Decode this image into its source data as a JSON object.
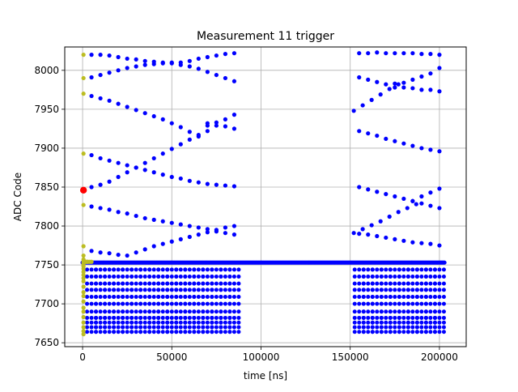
{
  "chart_data": {
    "type": "scatter",
    "title": "Measurement 11 trigger",
    "xlabel": "time [ns]",
    "ylabel": "ADC Code",
    "xlim": [
      -10000,
      215000
    ],
    "ylim": [
      7645,
      8030
    ],
    "xticks": [
      0,
      50000,
      100000,
      150000,
      200000
    ],
    "xtick_labels": [
      "0",
      "50000",
      "100000",
      "150000",
      "200000"
    ],
    "yticks": [
      7650,
      7700,
      7750,
      7800,
      7850,
      7900,
      7950,
      8000
    ],
    "ytick_labels": [
      "7650",
      "7700",
      "7750",
      "7800",
      "7850",
      "7900",
      "7950",
      "8000"
    ],
    "grid": true,
    "colors": {
      "main": "#0000ff",
      "pre_trigger": "#bcbd22",
      "trigger": "#ff0000",
      "grid": "#b0b0b0"
    },
    "baseline": {
      "y": 7753,
      "x_start": 0,
      "x_end": 203000
    },
    "series": [
      {
        "color_key": "pre_trigger",
        "points": [
          [
            500,
            8020
          ],
          [
            500,
            7990
          ],
          [
            500,
            7970
          ],
          [
            500,
            7893
          ],
          [
            500,
            7827
          ],
          [
            500,
            7774
          ],
          [
            500,
            7762
          ],
          [
            500,
            7757
          ],
          [
            500,
            7754
          ],
          [
            500,
            7752
          ],
          [
            500,
            7750
          ],
          [
            500,
            7748
          ],
          [
            500,
            7745
          ],
          [
            500,
            7741
          ],
          [
            500,
            7737
          ],
          [
            500,
            7733
          ],
          [
            500,
            7729
          ],
          [
            500,
            7722
          ],
          [
            500,
            7715
          ],
          [
            500,
            7710
          ],
          [
            500,
            7703
          ],
          [
            500,
            7695
          ],
          [
            500,
            7690
          ],
          [
            500,
            7683
          ],
          [
            500,
            7676
          ],
          [
            500,
            7670
          ],
          [
            500,
            7665
          ],
          [
            500,
            7661
          ],
          [
            1000,
            7754
          ],
          [
            1500,
            7754
          ],
          [
            2000,
            7754
          ],
          [
            2500,
            7754
          ],
          [
            3000,
            7754
          ],
          [
            4000,
            7754
          ],
          [
            5000,
            7754
          ]
        ]
      },
      {
        "color_key": "trigger",
        "points": [
          [
            500,
            7846
          ]
        ]
      },
      {
        "color_key": "main",
        "points": [
          [
            5000,
            8020
          ],
          [
            10000,
            8020
          ],
          [
            15000,
            8019
          ],
          [
            20000,
            8017
          ],
          [
            25000,
            8015
          ],
          [
            30000,
            8014
          ],
          [
            35000,
            8012
          ],
          [
            40000,
            8011
          ],
          [
            45000,
            8010
          ],
          [
            50000,
            8010
          ],
          [
            55000,
            8010
          ],
          [
            60000,
            8012
          ],
          [
            65000,
            8015
          ],
          [
            70000,
            8017
          ],
          [
            75000,
            8019
          ],
          [
            80000,
            8021
          ],
          [
            85000,
            8022
          ],
          [
            5000,
            7991
          ],
          [
            10000,
            7994
          ],
          [
            15000,
            7997
          ],
          [
            20000,
            8000
          ],
          [
            25000,
            8003
          ],
          [
            30000,
            8005
          ],
          [
            35000,
            8007
          ],
          [
            40000,
            8008
          ],
          [
            45000,
            8009
          ],
          [
            50000,
            8009
          ],
          [
            55000,
            8007
          ],
          [
            60000,
            8005
          ],
          [
            65000,
            8002
          ],
          [
            70000,
            7998
          ],
          [
            75000,
            7994
          ],
          [
            80000,
            7990
          ],
          [
            85000,
            7986
          ],
          [
            5000,
            7967
          ],
          [
            10000,
            7964
          ],
          [
            15000,
            7961
          ],
          [
            20000,
            7957
          ],
          [
            25000,
            7953
          ],
          [
            30000,
            7949
          ],
          [
            35000,
            7945
          ],
          [
            40000,
            7941
          ],
          [
            45000,
            7937
          ],
          [
            50000,
            7932
          ],
          [
            55000,
            7927
          ],
          [
            60000,
            7921
          ],
          [
            65000,
            7915
          ],
          [
            70000,
            7929
          ],
          [
            75000,
            7933
          ],
          [
            80000,
            7937
          ],
          [
            85000,
            7943
          ],
          [
            70000,
            7932
          ],
          [
            75000,
            7929
          ],
          [
            80000,
            7928
          ],
          [
            85000,
            7925
          ],
          [
            5000,
            7891
          ],
          [
            10000,
            7887
          ],
          [
            15000,
            7884
          ],
          [
            20000,
            7881
          ],
          [
            25000,
            7878
          ],
          [
            30000,
            7875
          ],
          [
            35000,
            7872
          ],
          [
            40000,
            7869
          ],
          [
            45000,
            7866
          ],
          [
            50000,
            7863
          ],
          [
            55000,
            7861
          ],
          [
            60000,
            7858
          ],
          [
            65000,
            7856
          ],
          [
            70000,
            7854
          ],
          [
            75000,
            7853
          ],
          [
            80000,
            7852
          ],
          [
            85000,
            7851
          ],
          [
            5000,
            7850
          ],
          [
            10000,
            7853
          ],
          [
            15000,
            7857
          ],
          [
            20000,
            7863
          ],
          [
            25000,
            7869
          ],
          [
            30000,
            7875
          ],
          [
            35000,
            7881
          ],
          [
            40000,
            7887
          ],
          [
            45000,
            7893
          ],
          [
            50000,
            7899
          ],
          [
            55000,
            7905
          ],
          [
            60000,
            7911
          ],
          [
            65000,
            7917
          ],
          [
            70000,
            7922
          ],
          [
            5000,
            7825
          ],
          [
            10000,
            7823
          ],
          [
            15000,
            7821
          ],
          [
            20000,
            7818
          ],
          [
            25000,
            7816
          ],
          [
            30000,
            7813
          ],
          [
            35000,
            7810
          ],
          [
            40000,
            7808
          ],
          [
            45000,
            7806
          ],
          [
            50000,
            7804
          ],
          [
            55000,
            7802
          ],
          [
            60000,
            7800
          ],
          [
            65000,
            7798
          ],
          [
            70000,
            7796
          ],
          [
            75000,
            7793
          ],
          [
            80000,
            7791
          ],
          [
            85000,
            7789
          ],
          [
            5000,
            7768
          ],
          [
            10000,
            7766
          ],
          [
            15000,
            7765
          ],
          [
            20000,
            7763
          ],
          [
            25000,
            7762
          ],
          [
            30000,
            7766
          ],
          [
            35000,
            7770
          ],
          [
            40000,
            7774
          ],
          [
            45000,
            7777
          ],
          [
            50000,
            7780
          ],
          [
            55000,
            7783
          ],
          [
            60000,
            7786
          ],
          [
            65000,
            7789
          ],
          [
            70000,
            7792
          ],
          [
            75000,
            7795
          ],
          [
            80000,
            7798
          ],
          [
            85000,
            7800
          ],
          [
            155000,
            8022
          ],
          [
            160000,
            8022
          ],
          [
            165000,
            8023
          ],
          [
            170000,
            8022
          ],
          [
            175000,
            8022
          ],
          [
            180000,
            8022
          ],
          [
            185000,
            8022
          ],
          [
            190000,
            8021
          ],
          [
            195000,
            8021
          ],
          [
            200000,
            8020
          ],
          [
            155000,
            7991
          ],
          [
            160000,
            7988
          ],
          [
            165000,
            7985
          ],
          [
            170000,
            7982
          ],
          [
            175000,
            7978
          ],
          [
            180000,
            7984
          ],
          [
            185000,
            7988
          ],
          [
            190000,
            7992
          ],
          [
            195000,
            7996
          ],
          [
            200000,
            8003
          ],
          [
            175000,
            7983
          ],
          [
            180000,
            7978
          ],
          [
            185000,
            7977
          ],
          [
            190000,
            7975
          ],
          [
            195000,
            7975
          ],
          [
            200000,
            7973
          ],
          [
            152000,
            7948
          ],
          [
            157000,
            7955
          ],
          [
            162000,
            7962
          ],
          [
            167000,
            7969
          ],
          [
            172000,
            7976
          ],
          [
            177000,
            7982
          ],
          [
            155000,
            7922
          ],
          [
            160000,
            7919
          ],
          [
            165000,
            7916
          ],
          [
            170000,
            7912
          ],
          [
            175000,
            7909
          ],
          [
            180000,
            7906
          ],
          [
            185000,
            7903
          ],
          [
            190000,
            7900
          ],
          [
            195000,
            7898
          ],
          [
            200000,
            7896
          ],
          [
            155000,
            7850
          ],
          [
            160000,
            7847
          ],
          [
            165000,
            7844
          ],
          [
            170000,
            7841
          ],
          [
            175000,
            7838
          ],
          [
            180000,
            7835
          ],
          [
            185000,
            7832
          ],
          [
            190000,
            7829
          ],
          [
            195000,
            7826
          ],
          [
            200000,
            7823
          ],
          [
            185000,
            7832
          ],
          [
            190000,
            7838
          ],
          [
            195000,
            7843
          ],
          [
            200000,
            7848
          ],
          [
            152000,
            7791
          ],
          [
            157000,
            7796
          ],
          [
            162000,
            7801
          ],
          [
            167000,
            7806
          ],
          [
            172000,
            7812
          ],
          [
            177000,
            7818
          ],
          [
            182000,
            7823
          ],
          [
            187000,
            7828
          ],
          [
            155000,
            7790
          ],
          [
            160000,
            7789
          ],
          [
            165000,
            7787
          ],
          [
            170000,
            7785
          ],
          [
            175000,
            7783
          ],
          [
            180000,
            7781
          ],
          [
            185000,
            7779
          ],
          [
            190000,
            7778
          ],
          [
            195000,
            7777
          ],
          [
            200000,
            7775
          ]
        ]
      }
    ],
    "column_stacks": {
      "color_key": "main",
      "groups": [
        {
          "x_start": 5000,
          "x_end": 85000,
          "x_step": 5000
        },
        {
          "x_start": 155000,
          "x_end": 200000,
          "x_step": 5000
        }
      ],
      "y_values": [
        7744,
        7735,
        7726,
        7718,
        7709,
        7700,
        7690,
        7682,
        7676,
        7670,
        7664
      ]
    }
  }
}
